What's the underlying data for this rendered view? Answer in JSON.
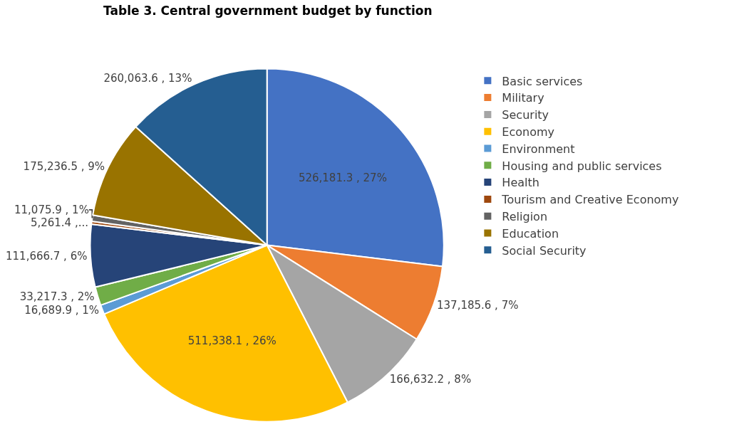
{
  "chart_data": {
    "type": "pie",
    "title": "Table 3. Central government budget by function",
    "categories": [
      "Basic services",
      "Military",
      "Security",
      "Economy",
      "Environment",
      "Housing and public services",
      "Health",
      "Tourism and Creative Economy",
      "Religion",
      "Education",
      "Social Security"
    ],
    "values": [
      526181.3,
      137185.6,
      166632.2,
      511338.1,
      16689.9,
      33217.3,
      111666.7,
      5261.4,
      11075.9,
      175236.5,
      260063.6
    ],
    "value_labels": [
      "526,181.3 , 27%",
      "137,185.6 , 7%",
      "166,632.2 , 8%",
      "511,338.1 , 26%",
      "16,689.9 , 1%",
      "33,217.3 , 2%",
      "111,666.7 , 6%",
      "5,261.4 ,...",
      "11,075.9 , 1%",
      "175,236.5 , 9%",
      "260,063.6 , 13%"
    ],
    "colors": [
      "#4472c4",
      "#ed7d31",
      "#a5a5a5",
      "#ffc000",
      "#5b9bd5",
      "#70ad47",
      "#264478",
      "#9e480e",
      "#636363",
      "#997300",
      "#255e91"
    ],
    "legend": "right"
  }
}
